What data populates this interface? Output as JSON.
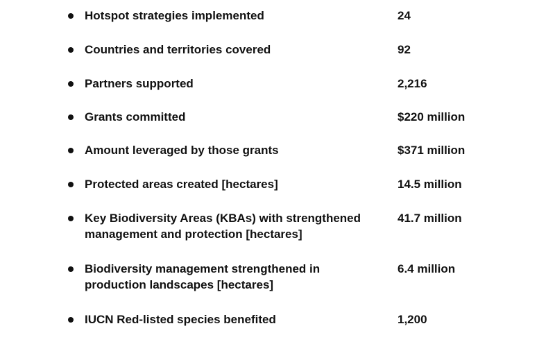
{
  "stats": [
    {
      "label": [
        "Hotspot strategies implemented"
      ],
      "value": "24"
    },
    {
      "label": [
        "Countries and territories covered"
      ],
      "value": "92"
    },
    {
      "label": [
        "Partners supported"
      ],
      "value": "2,216"
    },
    {
      "label": [
        "Grants committed"
      ],
      "value": "$220 million"
    },
    {
      "label": [
        "Amount leveraged by those grants"
      ],
      "value": "$371 million"
    },
    {
      "label": [
        "Protected areas created [hectares]"
      ],
      "value": "14.5 million"
    },
    {
      "label": [
        "Key Biodiversity Areas (KBAs) with strengthened",
        "management and protection [hectares]"
      ],
      "value": "41.7 million"
    },
    {
      "label": [
        "Biodiversity management strengthened in",
        "production landscapes [hectares]"
      ],
      "value": "6.4 million"
    },
    {
      "label": [
        "IUCN Red-listed species benefited"
      ],
      "value": "1,200"
    }
  ]
}
